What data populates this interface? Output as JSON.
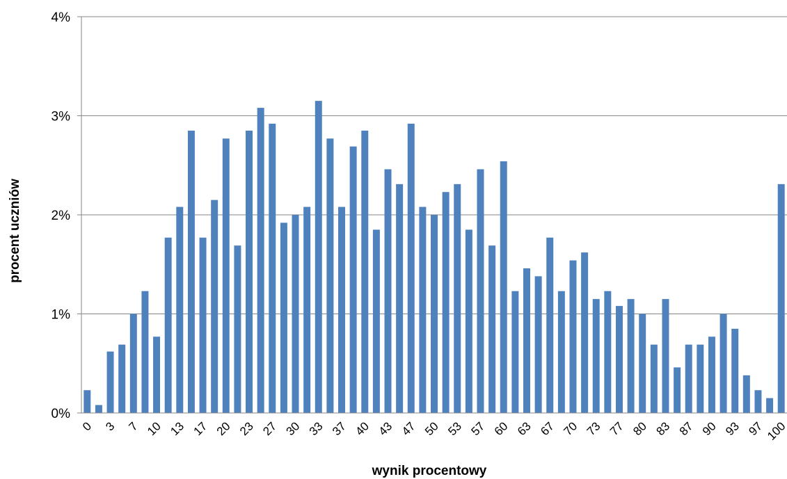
{
  "chart_data": {
    "type": "bar",
    "title": "",
    "xlabel": "wynik procentowy",
    "ylabel": "procent uczniów",
    "ylim": [
      0,
      4
    ],
    "y_ticks": [
      "0%",
      "1%",
      "2%",
      "3%",
      "4%"
    ],
    "grid": "horizontal",
    "color": "#4F81BD",
    "categories": [
      "0",
      "2",
      "3",
      "5",
      "7",
      "8",
      "10",
      "12",
      "13",
      "15",
      "17",
      "18",
      "20",
      "22",
      "23",
      "25",
      "27",
      "28",
      "30",
      "32",
      "33",
      "35",
      "37",
      "38",
      "40",
      "42",
      "43",
      "45",
      "47",
      "48",
      "50",
      "52",
      "53",
      "55",
      "57",
      "58",
      "60",
      "62",
      "63",
      "65",
      "67",
      "68",
      "70",
      "72",
      "73",
      "75",
      "77",
      "78",
      "80",
      "82",
      "83",
      "85",
      "87",
      "88",
      "90",
      "92",
      "93",
      "95",
      "97",
      "98",
      "100"
    ],
    "x_tick_labels": [
      "0",
      "3",
      "7",
      "10",
      "13",
      "17",
      "20",
      "23",
      "27",
      "30",
      "33",
      "37",
      "40",
      "43",
      "47",
      "50",
      "53",
      "57",
      "60",
      "63",
      "67",
      "70",
      "73",
      "77",
      "80",
      "83",
      "87",
      "90",
      "93",
      "97",
      "100"
    ],
    "values": [
      0.23,
      0.08,
      0.62,
      0.69,
      1.0,
      1.23,
      0.77,
      1.77,
      2.08,
      2.85,
      1.77,
      2.15,
      2.77,
      1.69,
      2.85,
      3.08,
      2.92,
      1.92,
      2.0,
      2.08,
      3.15,
      2.77,
      2.08,
      2.69,
      2.85,
      1.85,
      2.46,
      2.31,
      2.92,
      2.08,
      2.0,
      2.23,
      2.31,
      1.85,
      2.46,
      1.69,
      2.54,
      1.23,
      1.46,
      1.38,
      1.77,
      1.23,
      1.54,
      1.62,
      1.15,
      1.23,
      1.08,
      1.15,
      1.0,
      0.69,
      1.15,
      0.46,
      0.69,
      0.69,
      0.77,
      1.0,
      0.85,
      0.38,
      0.23,
      0.15,
      2.31
    ]
  }
}
